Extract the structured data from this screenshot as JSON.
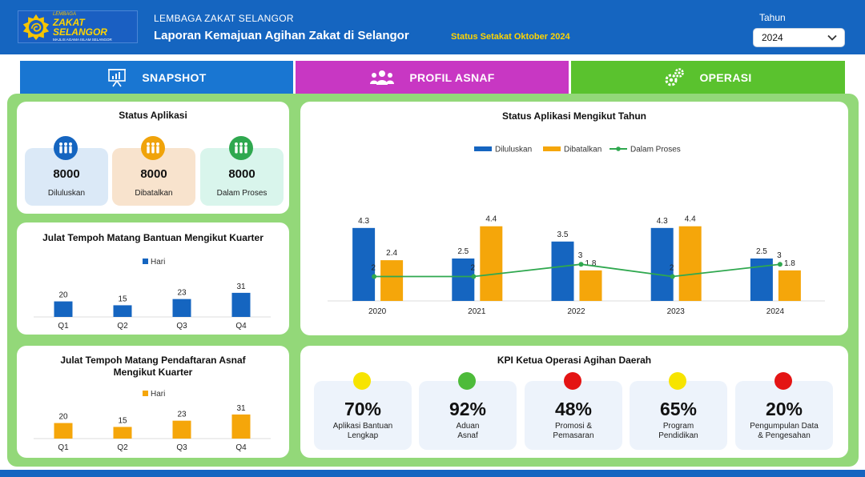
{
  "header": {
    "logo": {
      "small": "LEMBAGA",
      "big": "ZAKAT SELANGOR",
      "tiny": "MAJLIS AGAMA ISLAM SELANGOR"
    },
    "org_name": "LEMBAGA ZAKAT SELANGOR",
    "title": "Laporan Kemajuan Agihan Zakat di Selangor",
    "status_date": "Status Setakat Oktober 2024",
    "year_label": "Tahun",
    "year_value": "2024"
  },
  "tabs": [
    {
      "label": "SNAPSHOT",
      "icon": "presentation-chart-icon",
      "color": "#1976d2"
    },
    {
      "label": "PROFIL ASNAF",
      "icon": "people-group-icon",
      "color": "#c837c3"
    },
    {
      "label": "OPERASI",
      "icon": "gears-icon",
      "color": "#5ac22e"
    }
  ],
  "status_aplikasi": {
    "title": "Status Aplikasi",
    "items": [
      {
        "value": "8000",
        "label": "Diluluskan",
        "color": "#1565c0",
        "bg": "#dbe9f7",
        "icon": "people-icon"
      },
      {
        "value": "8000",
        "label": "Dibatalkan",
        "color": "#f0a30a",
        "bg": "#f8e3cd",
        "icon": "people-icon"
      },
      {
        "value": "8000",
        "label": "Dalam Proses",
        "color": "#2fa84f",
        "bg": "#d9f5ec",
        "icon": "people-icon"
      }
    ]
  },
  "chart_data": [
    {
      "id": "bantuan",
      "type": "bar",
      "title": "Julat Tempoh Matang Bantuan Mengikut Kuarter",
      "categories": [
        "Q1",
        "Q2",
        "Q3",
        "Q4"
      ],
      "series": [
        {
          "name": "Hari",
          "values": [
            20,
            15,
            23,
            31
          ],
          "color": "#1565c0"
        }
      ],
      "ylim": [
        0,
        35
      ],
      "grid": false,
      "legend": "top-center"
    },
    {
      "id": "asnaf",
      "type": "bar",
      "title": "Julat Tempoh Matang Pendaftaran Asnaf Mengikut Kuarter",
      "categories": [
        "Q1",
        "Q2",
        "Q3",
        "Q4"
      ],
      "series": [
        {
          "name": "Hari",
          "values": [
            20,
            15,
            23,
            31
          ],
          "color": "#f5a60a"
        }
      ],
      "ylim": [
        0,
        35
      ],
      "grid": false,
      "legend": "top-center"
    },
    {
      "id": "tahun",
      "type": "bar",
      "title": "Status Aplikasi Mengikut Tahun",
      "categories": [
        "2020",
        "2021",
        "2022",
        "2023",
        "2024"
      ],
      "series": [
        {
          "name": "Diluluskan",
          "values": [
            4.3,
            2.5,
            3.5,
            4.3,
            2.5
          ],
          "color": "#1565c0",
          "kind": "bar"
        },
        {
          "name": "Dibatalkan",
          "values": [
            2.4,
            4.4,
            1.8,
            4.4,
            1.8
          ],
          "color": "#f5a60a",
          "kind": "bar"
        },
        {
          "name": "Dalam Proses",
          "values": [
            2,
            2,
            3,
            2,
            3
          ],
          "color": "#2fa84f",
          "kind": "line"
        }
      ],
      "ylim": [
        0,
        5
      ],
      "grid": false,
      "legend": "top-center"
    }
  ],
  "kpi": {
    "title": "KPI Ketua Operasi Agihan Daerah",
    "items": [
      {
        "value": "70%",
        "label": "Aplikasi Bantuan\nLengkap",
        "status_color": "#f7e400"
      },
      {
        "value": "92%",
        "label": "Aduan\nAsnaf",
        "status_color": "#4dbb3a"
      },
      {
        "value": "48%",
        "label": "Promosi &\nPemasaran",
        "status_color": "#e41414"
      },
      {
        "value": "65%",
        "label": "Program\nPendidikan",
        "status_color": "#f7e400"
      },
      {
        "value": "20%",
        "label": "Pengumpulan Data\n& Pengesahan",
        "status_color": "#e41414"
      }
    ]
  }
}
